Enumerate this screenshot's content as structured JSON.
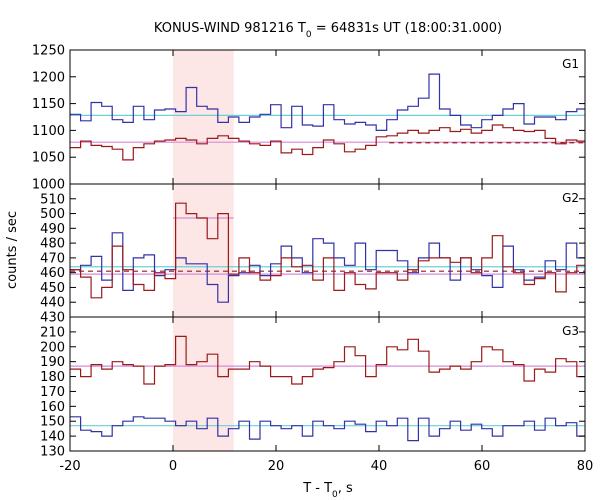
{
  "chart_data": {
    "type": "line",
    "title_main": "KONUS-WIND 981216 T",
    "title_sub": "0",
    "title_rest": " = 64831s UT (18:00:31.000)",
    "xlabel_main": "T - T",
    "xlabel_sub": "0",
    "xlabel_rest": ", s",
    "ylabel": "counts / sec",
    "xlim": [
      -20,
      80
    ],
    "xticks": [
      "-20",
      "0",
      "20",
      "40",
      "60",
      "80"
    ],
    "shade_interval": [
      0,
      11.776
    ],
    "colors": {
      "blue": "#3232a8",
      "red": "#9a1a1a",
      "cyan": "#6ccfd8",
      "pink": "#d889d8",
      "shade": "#fde6e6"
    },
    "panels": [
      {
        "label": "G1",
        "ylim": [
          1000,
          1250
        ],
        "yticks": [
          "1000",
          "1050",
          "1100",
          "1150",
          "1200",
          "1250"
        ],
        "bin_edges": [
          -20,
          -17.95,
          -15.9,
          -13.85,
          -11.8,
          -9.75,
          -7.7,
          -5.65,
          -3.6,
          -1.55,
          0.5,
          2.55,
          4.6,
          6.65,
          8.7,
          10.75,
          12.8,
          14.85,
          16.9,
          18.95,
          21,
          23.05,
          25.1,
          27.15,
          29.2,
          31.25,
          33.3,
          35.35,
          37.4,
          39.45,
          41.5,
          43.55,
          45.6,
          47.65,
          49.7,
          51.75,
          53.8,
          55.85,
          57.9,
          59.95,
          62,
          64.05,
          66.1,
          68.15,
          70.2,
          72.25,
          74.3,
          76.35,
          78.4,
          80
        ],
        "series": [
          {
            "color": "blue",
            "values": [
              1130,
              1118,
              1152,
              1145,
              1120,
              1115,
              1145,
              1120,
              1138,
              1140,
              1135,
              1180,
              1145,
              1140,
              1115,
              1125,
              1115,
              1125,
              1130,
              1148,
              1105,
              1145,
              1110,
              1108,
              1148,
              1120,
              1112,
              1115,
              1110,
              1100,
              1120,
              1138,
              1145,
              1160,
              1205,
              1140,
              1128,
              1110,
              1105,
              1120,
              1128,
              1140,
              1150,
              1112,
              1125,
              1125,
              1120,
              1135,
              1140
            ]
          },
          {
            "color": "red",
            "values": [
              1068,
              1080,
              1072,
              1070,
              1065,
              1045,
              1068,
              1075,
              1080,
              1082,
              1085,
              1082,
              1075,
              1085,
              1090,
              1085,
              1080,
              1075,
              1072,
              1080,
              1058,
              1065,
              1055,
              1068,
              1082,
              1075,
              1060,
              1065,
              1072,
              1088,
              1090,
              1095,
              1100,
              1095,
              1100,
              1105,
              1098,
              1102,
              1095,
              1100,
              1110,
              1105,
              1100,
              1098,
              1100,
              1085,
              1075,
              1082,
              1080
            ]
          }
        ],
        "bg_lines": [
          {
            "color": "cyan",
            "value": 1128,
            "style": "solid"
          },
          {
            "color": "pink",
            "value": 1078,
            "style": "solid"
          },
          {
            "color": "red",
            "value": 1077,
            "style": "dashed",
            "from": 42,
            "to": 80
          }
        ]
      },
      {
        "label": "G2",
        "ylim": [
          430,
          520
        ],
        "yticks": [
          "430",
          "440",
          "450",
          "460",
          "470",
          "480",
          "490",
          "500",
          "510"
        ],
        "bin_edges": [
          -20,
          -17.95,
          -15.9,
          -13.85,
          -11.8,
          -9.75,
          -7.7,
          -5.65,
          -3.6,
          -1.55,
          0.5,
          2.55,
          4.6,
          6.65,
          8.7,
          10.75,
          12.8,
          14.85,
          16.9,
          18.95,
          21,
          23.05,
          25.1,
          27.15,
          29.2,
          31.25,
          33.3,
          35.35,
          37.4,
          39.45,
          41.5,
          43.55,
          45.6,
          47.65,
          49.7,
          51.75,
          53.8,
          55.85,
          57.9,
          59.95,
          62,
          64.05,
          66.1,
          68.15,
          70.2,
          72.25,
          74.3,
          76.35,
          78.4,
          80
        ],
        "series": [
          {
            "color": "blue",
            "values": [
              462,
              465,
              471,
              455,
              487,
              448,
              470,
              472,
              458,
              462,
              470,
              466,
              466,
              452,
              440,
              458,
              460,
              465,
              458,
              466,
              478,
              470,
              460,
              483,
              480,
              470,
              465,
              480,
              462,
              475,
              475,
              468,
              460,
              470,
              480,
              470,
              455,
              470,
              462,
              458,
              450,
              478,
              462,
              455,
              457,
              468,
              462,
              480,
              470
            ]
          },
          {
            "color": "red",
            "values": [
              462,
              457,
              443,
              450,
              478,
              462,
              452,
              448,
              460,
              456,
              507,
              500,
              497,
              483,
              500,
              459,
              470,
              460,
              455,
              458,
              470,
              464,
              465,
              455,
              470,
              448,
              460,
              452,
              449,
              460,
              460,
              455,
              462,
              468,
              470,
              470,
              467,
              470,
              460,
              470,
              485,
              464,
              460,
              452,
              456,
              460,
              447,
              460,
              465
            ]
          }
        ],
        "bg_lines": [
          {
            "color": "cyan",
            "value": 464,
            "style": "solid"
          },
          {
            "color": "pink",
            "value": 459,
            "style": "solid"
          },
          {
            "color": "pink",
            "value": 497,
            "style": "solid",
            "from": 0,
            "to": 11.776
          },
          {
            "color": "red",
            "value": 461,
            "style": "dashed",
            "from": -20,
            "to": 80
          }
        ]
      },
      {
        "label": "G3",
        "ylim": [
          130,
          220
        ],
        "yticks": [
          "130",
          "140",
          "150",
          "160",
          "170",
          "180",
          "190",
          "200",
          "210"
        ],
        "bin_edges": [
          -20,
          -17.95,
          -15.9,
          -13.85,
          -11.8,
          -9.75,
          -7.7,
          -5.65,
          -3.6,
          -1.55,
          0.5,
          2.55,
          4.6,
          6.65,
          8.7,
          10.75,
          12.8,
          14.85,
          16.9,
          18.95,
          21,
          23.05,
          25.1,
          27.15,
          29.2,
          31.25,
          33.3,
          35.35,
          37.4,
          39.45,
          41.5,
          43.55,
          45.6,
          47.65,
          49.7,
          51.75,
          53.8,
          55.85,
          57.9,
          59.95,
          62,
          64.05,
          66.1,
          68.15,
          70.2,
          72.25,
          74.3,
          76.35,
          78.4,
          80
        ],
        "series": [
          {
            "color": "blue",
            "values": [
              153,
              144,
              143,
              140,
              147,
              150,
              153,
              152,
              152,
              150,
              147,
              150,
              145,
              152,
              140,
              145,
              150,
              138,
              150,
              147,
              145,
              147,
              140,
              150,
              147,
              145,
              150,
              148,
              143,
              150,
              147,
              152,
              137,
              152,
              140,
              145,
              150,
              144,
              148,
              145,
              140,
              147,
              147,
              150,
              144,
              152,
              147,
              149,
              140
            ]
          },
          {
            "color": "red",
            "values": [
              185,
              180,
              188,
              185,
              190,
              188,
              187,
              175,
              187,
              188,
              207,
              188,
              190,
              195,
              180,
              185,
              185,
              190,
              187,
              180,
              180,
              175,
              180,
              185,
              186,
              190,
              200,
              194,
              180,
              188,
              200,
              198,
              205,
              197,
              183,
              185,
              187,
              185,
              190,
              200,
              198,
              190,
              188,
              177,
              185,
              183,
              192,
              190,
              180
            ]
          }
        ],
        "bg_lines": [
          {
            "color": "cyan",
            "value": 147,
            "style": "solid"
          },
          {
            "color": "pink",
            "value": 187,
            "style": "solid"
          }
        ]
      }
    ]
  }
}
